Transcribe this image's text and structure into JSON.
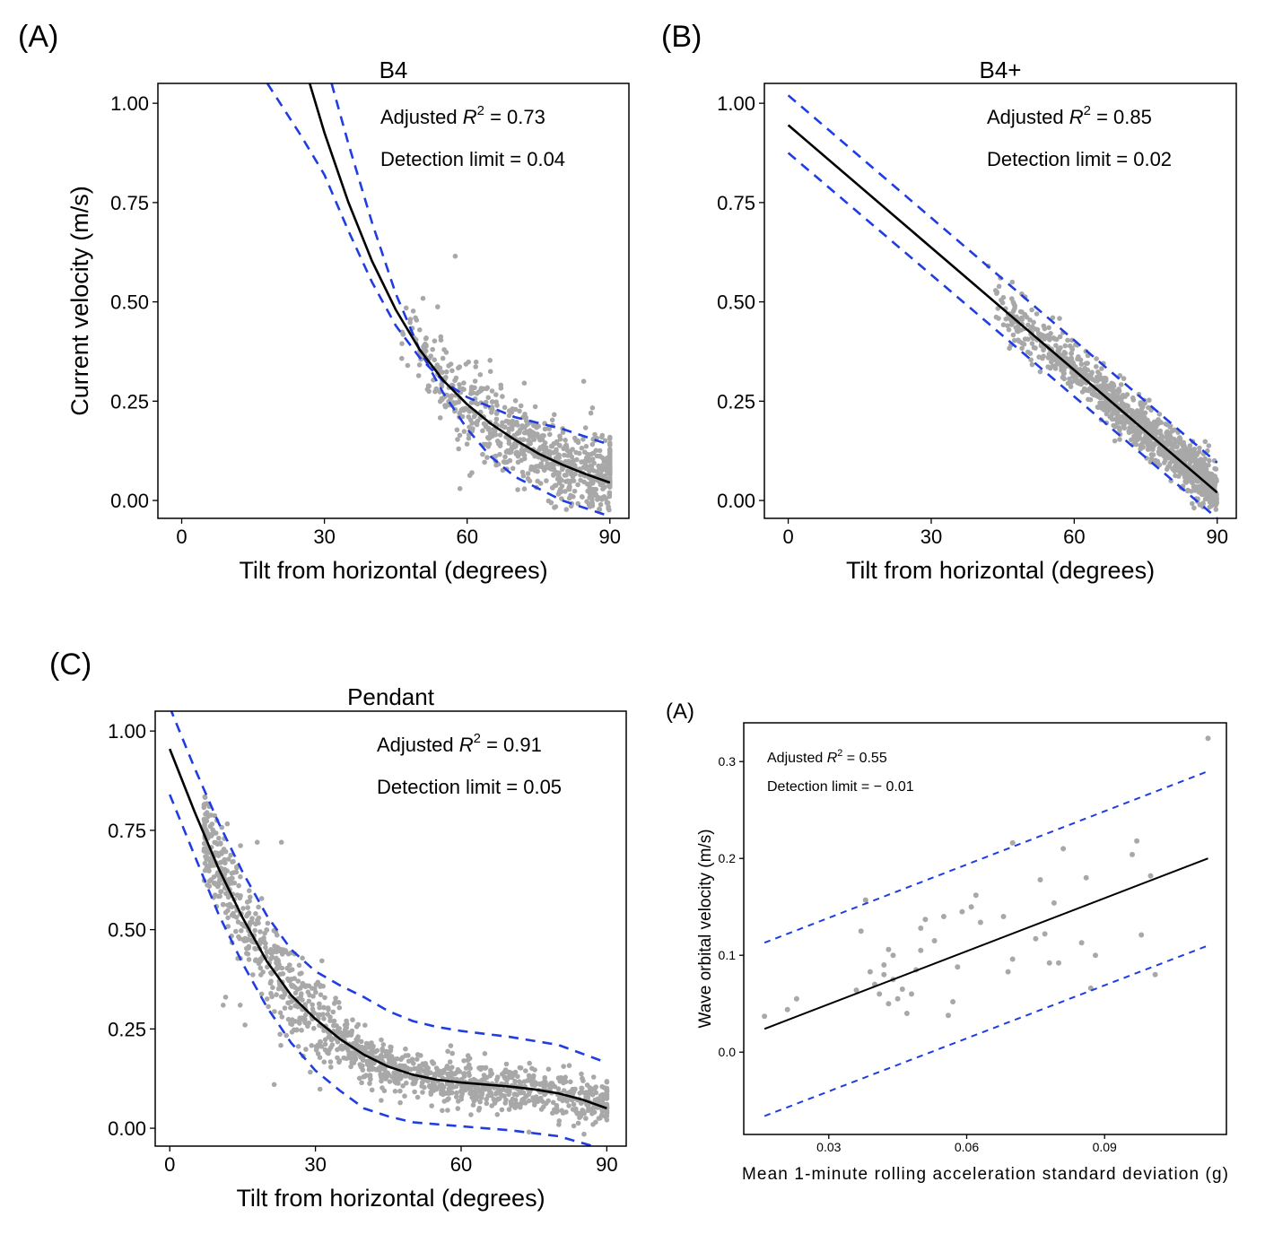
{
  "panel_letters": {
    "a": "(A)",
    "b": "(B)",
    "c": "(C)",
    "d": "(A)"
  },
  "colors": {
    "points": "#a8a8a8",
    "fit": "#000000",
    "bounds": "#1f3de0"
  },
  "chart_data": [
    {
      "type": "scatter",
      "title": "B4",
      "xlabel": "Tilt from horizontal (degrees)",
      "ylabel": "Current velocity (m/s)",
      "xlim": [
        -5,
        94
      ],
      "ylim": [
        -0.045,
        1.05
      ],
      "xticks": [
        0,
        30,
        60,
        90
      ],
      "xtick_labels": [
        "0",
        "30",
        "60",
        "90"
      ],
      "yticks": [
        0,
        0.25,
        0.5,
        0.75,
        1.0
      ],
      "ytick_labels": [
        "0.00",
        "0.25",
        "0.50",
        "0.75",
        "1.00"
      ],
      "annotation_r2": {
        "prefix": "Adjusted ",
        "symbol": "R",
        "sup": "2",
        "value": " = 0.73"
      },
      "annotation_dl": "Detection limit = 0.04",
      "fit_line": [
        [
          26.9,
          1.05
        ],
        [
          30,
          0.926
        ],
        [
          35,
          0.752
        ],
        [
          40,
          0.603
        ],
        [
          45,
          0.48
        ],
        [
          50,
          0.38
        ],
        [
          55,
          0.302
        ],
        [
          60,
          0.242
        ],
        [
          65,
          0.193
        ],
        [
          70,
          0.153
        ],
        [
          75,
          0.118
        ],
        [
          80,
          0.09
        ],
        [
          85,
          0.066
        ],
        [
          90,
          0.045
        ]
      ],
      "upper_bound": [
        [
          18,
          1.05
        ],
        [
          25,
          0.92
        ],
        [
          30,
          0.82
        ],
        [
          35,
          0.68
        ],
        [
          40,
          0.55
        ],
        [
          45,
          0.44
        ],
        [
          50,
          0.36
        ],
        [
          55,
          0.3
        ],
        [
          60,
          0.26
        ],
        [
          70,
          0.21
        ],
        [
          80,
          0.18
        ],
        [
          90,
          0.14
        ]
      ],
      "lower_bound": [
        [
          31.5,
          1.05
        ],
        [
          35,
          0.9
        ],
        [
          40,
          0.7
        ],
        [
          45,
          0.52
        ],
        [
          50,
          0.38
        ],
        [
          55,
          0.27
        ],
        [
          60,
          0.18
        ],
        [
          65,
          0.11
        ],
        [
          70,
          0.06
        ],
        [
          75,
          0.03
        ],
        [
          80,
          0.0
        ],
        [
          85,
          -0.02
        ],
        [
          90,
          -0.04
        ]
      ],
      "points": {
        "seed": 11,
        "n": 700,
        "x_range": [
          46,
          90
        ],
        "noise": 0.05,
        "curve": "b4",
        "wall_at": 90,
        "wall_range": [
          0.03,
          0.18
        ],
        "wall_n": 40,
        "extras": [
          [
            57.5,
            0.615
          ],
          [
            84.5,
            0.3
          ],
          [
            47.5,
            0.34
          ],
          [
            61,
            0.07
          ],
          [
            58.5,
            0.03
          ],
          [
            86,
            0.22
          ]
        ]
      }
    },
    {
      "type": "scatter",
      "title": "B4+",
      "xlabel": "Tilt from horizontal (degrees)",
      "ylabel": "",
      "xlim": [
        -5,
        94
      ],
      "ylim": [
        -0.045,
        1.05
      ],
      "xticks": [
        0,
        30,
        60,
        90
      ],
      "xtick_labels": [
        "0",
        "30",
        "60",
        "90"
      ],
      "yticks": [
        0,
        0.25,
        0.5,
        0.75,
        1.0
      ],
      "ytick_labels": [
        "0.00",
        "0.25",
        "0.50",
        "0.75",
        "1.00"
      ],
      "annotation_r2": {
        "prefix": "Adjusted ",
        "symbol": "R",
        "sup": "2",
        "value": " = 0.85"
      },
      "annotation_dl": "Detection limit = 0.02",
      "fit_line": [
        [
          0,
          0.945
        ],
        [
          90,
          0.02
        ]
      ],
      "upper_bound": [
        [
          0,
          1.02
        ],
        [
          90,
          0.095
        ]
      ],
      "lower_bound": [
        [
          0,
          0.875
        ],
        [
          90,
          -0.045
        ]
      ],
      "points": {
        "seed": 23,
        "n": 1100,
        "x_range": [
          42,
          90
        ],
        "noise": 0.03,
        "curve": "linear",
        "wall_at": 0,
        "wall_range": [
          0,
          0
        ],
        "wall_n": 0,
        "extras": [
          [
            42,
            0.59
          ],
          [
            44.5,
            0.56
          ],
          [
            47,
            0.55
          ],
          [
            55.5,
            0.46
          ],
          [
            49,
            0.52
          ]
        ]
      }
    },
    {
      "type": "scatter",
      "title": "Pendant",
      "xlabel": "Tilt from horizontal (degrees)",
      "ylabel": "",
      "xlim": [
        -3,
        94
      ],
      "ylim": [
        -0.045,
        1.05
      ],
      "xticks": [
        0,
        30,
        60,
        90
      ],
      "xtick_labels": [
        "0",
        "30",
        "60",
        "90"
      ],
      "yticks": [
        0,
        0.25,
        0.5,
        0.75,
        1.0
      ],
      "ytick_labels": [
        "0.00",
        "0.25",
        "0.50",
        "0.75",
        "1.00"
      ],
      "annotation_r2": {
        "prefix": "Adjusted ",
        "symbol": "R",
        "sup": "2",
        "value": " = 0.91"
      },
      "annotation_dl": "Detection limit = 0.05",
      "fit_line": [
        [
          0,
          0.955
        ],
        [
          5,
          0.8
        ],
        [
          10,
          0.655
        ],
        [
          15,
          0.53
        ],
        [
          20,
          0.42
        ],
        [
          25,
          0.335
        ],
        [
          30,
          0.275
        ],
        [
          35,
          0.225
        ],
        [
          40,
          0.185
        ],
        [
          45,
          0.155
        ],
        [
          50,
          0.135
        ],
        [
          55,
          0.122
        ],
        [
          60,
          0.115
        ],
        [
          65,
          0.11
        ],
        [
          70,
          0.105
        ],
        [
          75,
          0.098
        ],
        [
          80,
          0.088
        ],
        [
          85,
          0.072
        ],
        [
          90,
          0.05
        ]
      ],
      "upper_bound": [
        [
          0,
          1.06
        ],
        [
          5,
          0.91
        ],
        [
          10,
          0.77
        ],
        [
          15,
          0.645
        ],
        [
          20,
          0.535
        ],
        [
          25,
          0.45
        ],
        [
          30,
          0.395
        ],
        [
          35,
          0.36
        ],
        [
          40,
          0.33
        ],
        [
          45,
          0.295
        ],
        [
          50,
          0.27
        ],
        [
          55,
          0.255
        ],
        [
          60,
          0.245
        ],
        [
          70,
          0.23
        ],
        [
          80,
          0.21
        ],
        [
          90,
          0.165
        ]
      ],
      "lower_bound": [
        [
          0,
          0.84
        ],
        [
          5,
          0.69
        ],
        [
          10,
          0.54
        ],
        [
          15,
          0.415
        ],
        [
          20,
          0.305
        ],
        [
          25,
          0.215
        ],
        [
          30,
          0.145
        ],
        [
          35,
          0.095
        ],
        [
          40,
          0.05
        ],
        [
          45,
          0.03
        ],
        [
          50,
          0.015
        ],
        [
          60,
          0.005
        ],
        [
          70,
          -0.005
        ],
        [
          80,
          -0.02
        ],
        [
          90,
          -0.055
        ]
      ],
      "points": {
        "seed": 37,
        "n": 1300,
        "x_range": [
          7,
          90
        ],
        "noise": 0.045,
        "curve": "pendant",
        "wall_at": 90,
        "wall_range": [
          0.02,
          0.12
        ],
        "wall_n": 30,
        "extras": [
          [
            11.5,
            0.33
          ],
          [
            11,
            0.31
          ],
          [
            14.5,
            0.31
          ],
          [
            15.5,
            0.26
          ],
          [
            21.5,
            0.11
          ],
          [
            23,
            0.72
          ],
          [
            18,
            0.72
          ]
        ]
      }
    },
    {
      "type": "scatter",
      "title": "",
      "xlabel": "Mean 1-minute rolling acceleration standard deviation (g)",
      "ylabel": "Wave orbital velocity (m/s)",
      "xlim": [
        0.0115,
        0.1165
      ],
      "ylim": [
        -0.085,
        0.34
      ],
      "xticks": [
        0.03,
        0.06,
        0.09
      ],
      "xtick_labels": [
        "0.03",
        "0.06",
        "0.09"
      ],
      "yticks": [
        0,
        0.1,
        0.2,
        0.3
      ],
      "ytick_labels": [
        "0.0",
        "0.1",
        "0.2",
        "0.3"
      ],
      "annotation_r2": {
        "prefix": "Adjusted ",
        "symbol": "R",
        "sup": "2",
        "value": " = 0.55"
      },
      "annotation_dl": "Detection limit = − 0.01",
      "fit_line": [
        [
          0.016,
          0.024
        ],
        [
          0.1125,
          0.2
        ]
      ],
      "upper_bound": [
        [
          0.016,
          0.113
        ],
        [
          0.1125,
          0.29
        ]
      ],
      "lower_bound": [
        [
          0.016,
          -0.066
        ],
        [
          0.1125,
          0.11
        ]
      ],
      "scatter_points": [
        [
          0.016,
          0.037
        ],
        [
          0.021,
          0.044
        ],
        [
          0.023,
          0.055
        ],
        [
          0.036,
          0.064
        ],
        [
          0.037,
          0.125
        ],
        [
          0.038,
          0.157
        ],
        [
          0.039,
          0.083
        ],
        [
          0.04,
          0.07
        ],
        [
          0.041,
          0.06
        ],
        [
          0.042,
          0.08
        ],
        [
          0.042,
          0.09
        ],
        [
          0.043,
          0.05
        ],
        [
          0.043,
          0.106
        ],
        [
          0.044,
          0.1
        ],
        [
          0.044,
          0.075
        ],
        [
          0.045,
          0.055
        ],
        [
          0.046,
          0.065
        ],
        [
          0.047,
          0.04
        ],
        [
          0.048,
          0.06
        ],
        [
          0.049,
          0.085
        ],
        [
          0.05,
          0.105
        ],
        [
          0.05,
          0.128
        ],
        [
          0.051,
          0.137
        ],
        [
          0.053,
          0.115
        ],
        [
          0.055,
          0.14
        ],
        [
          0.056,
          0.038
        ],
        [
          0.057,
          0.052
        ],
        [
          0.058,
          0.088
        ],
        [
          0.059,
          0.145
        ],
        [
          0.061,
          0.15
        ],
        [
          0.062,
          0.162
        ],
        [
          0.063,
          0.134
        ],
        [
          0.068,
          0.14
        ],
        [
          0.069,
          0.083
        ],
        [
          0.07,
          0.096
        ],
        [
          0.07,
          0.216
        ],
        [
          0.075,
          0.117
        ],
        [
          0.076,
          0.178
        ],
        [
          0.077,
          0.122
        ],
        [
          0.078,
          0.092
        ],
        [
          0.079,
          0.154
        ],
        [
          0.08,
          0.092
        ],
        [
          0.081,
          0.21
        ],
        [
          0.085,
          0.113
        ],
        [
          0.086,
          0.18
        ],
        [
          0.087,
          0.066
        ],
        [
          0.088,
          0.1
        ],
        [
          0.096,
          0.204
        ],
        [
          0.097,
          0.218
        ],
        [
          0.098,
          0.121
        ],
        [
          0.1,
          0.182
        ],
        [
          0.101,
          0.08
        ],
        [
          0.1125,
          0.324
        ]
      ]
    }
  ]
}
